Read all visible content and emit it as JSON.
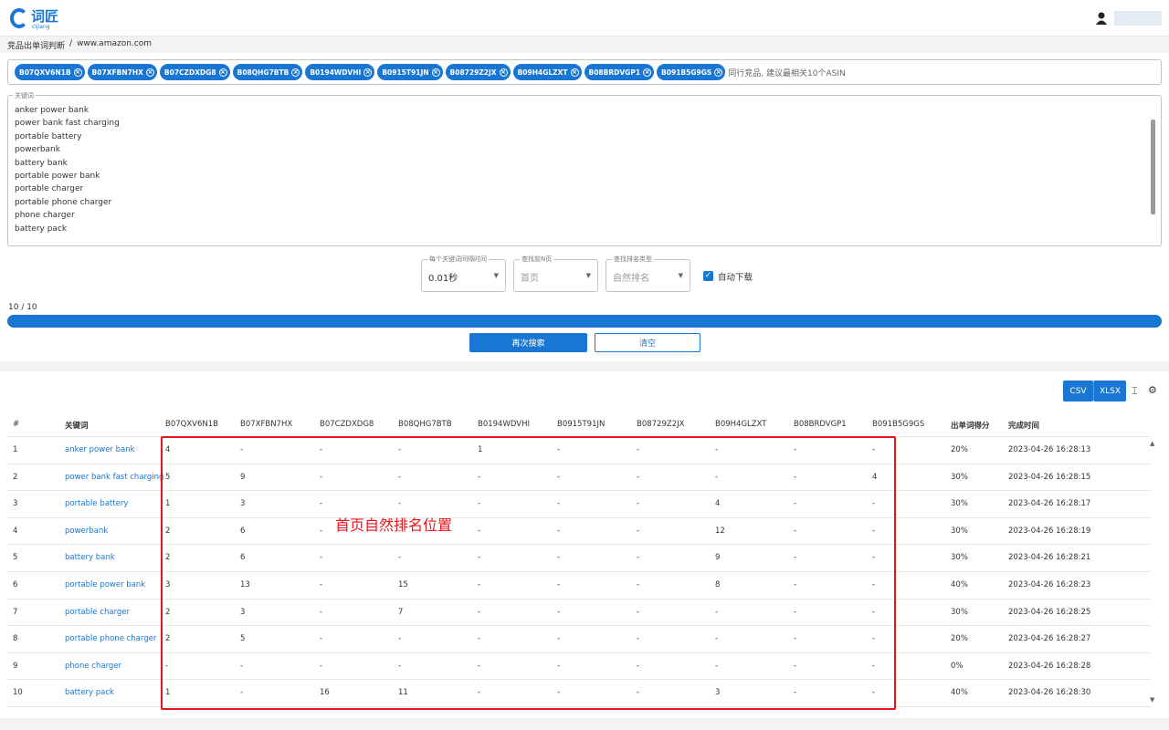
{
  "header": {
    "logo": "词匠",
    "logo_sub": "cijiang"
  },
  "breadcrumb": [
    "竞品出单词判断",
    "/",
    "www.amazon.com"
  ],
  "asin_tags": [
    "B07QXV6N1B",
    "B07XFBN7HX",
    "B07CZDXDG8",
    "B08QHG7BTB",
    "B0194WDVHI",
    "B0915T91JN",
    "B08729Z2JX",
    "B09H4GLZXT",
    "B08BRDVGP1",
    "B091B5G9GS"
  ],
  "asin_hint": "同行竞品, 建议最相关10个ASIN",
  "keywords_label": "关键词",
  "keywords": [
    "anker power bank",
    "power bank fast charging",
    "portable battery",
    "powerbank",
    "battery bank",
    "portable power bank",
    "portable charger",
    "portable phone charger",
    "phone charger",
    "battery pack"
  ],
  "options": [
    {
      "label": "每个关键词间隔时间",
      "value": "0.01秒"
    },
    {
      "label": "查找前N页",
      "value": "首页"
    },
    {
      "label": "查找排名类型",
      "value": "自然排名"
    }
  ],
  "auto_download": "自动下载",
  "progress_text": "10 / 10",
  "buttons": [
    "再次搜索",
    "清空"
  ],
  "export_buttons": [
    "CSV",
    "XLSX"
  ],
  "table": {
    "columns": [
      "#",
      "关键词",
      "B07QXV6N1B",
      "B07XFBN7HX",
      "B07CZDXDG8",
      "B08QHG7BTB",
      "B0194WDVHI",
      "B0915T91JN",
      "B08729Z2JX",
      "B09H4GLZXT",
      "B08BRDVGP1",
      "B091B5G9GS",
      "出单词得分",
      "完成时间"
    ],
    "rows": [
      [
        "1",
        "anker power bank",
        "4",
        "-",
        "-",
        "-",
        "1",
        "-",
        "-",
        "-",
        "-",
        "-",
        "20%",
        "2023-04-26 16:28:13"
      ],
      [
        "2",
        "power bank fast charging",
        "5",
        "9",
        "-",
        "-",
        "-",
        "-",
        "-",
        "-",
        "-",
        "4",
        "30%",
        "2023-04-26 16:28:15"
      ],
      [
        "3",
        "portable battery",
        "1",
        "3",
        "-",
        "-",
        "-",
        "-",
        "-",
        "4",
        "-",
        "-",
        "30%",
        "2023-04-26 16:28:17"
      ],
      [
        "4",
        "powerbank",
        "2",
        "6",
        "-",
        "-",
        "-",
        "-",
        "-",
        "12",
        "-",
        "-",
        "30%",
        "2023-04-26 16:28:19"
      ],
      [
        "5",
        "battery bank",
        "2",
        "6",
        "-",
        "-",
        "-",
        "-",
        "-",
        "9",
        "-",
        "-",
        "30%",
        "2023-04-26 16:28:21"
      ],
      [
        "6",
        "portable power bank",
        "3",
        "13",
        "-",
        "15",
        "-",
        "-",
        "-",
        "8",
        "-",
        "-",
        "40%",
        "2023-04-26 16:28:23"
      ],
      [
        "7",
        "portable charger",
        "2",
        "3",
        "-",
        "7",
        "-",
        "-",
        "-",
        "-",
        "-",
        "-",
        "30%",
        "2023-04-26 16:28:25"
      ],
      [
        "8",
        "portable phone charger",
        "2",
        "5",
        "-",
        "-",
        "-",
        "-",
        "-",
        "-",
        "-",
        "-",
        "20%",
        "2023-04-26 16:28:27"
      ],
      [
        "9",
        "phone charger",
        "-",
        "-",
        "-",
        "-",
        "-",
        "-",
        "-",
        "-",
        "-",
        "-",
        "0%",
        "2023-04-26 16:28:28"
      ],
      [
        "10",
        "battery pack",
        "1",
        "-",
        "16",
        "11",
        "-",
        "-",
        "-",
        "3",
        "-",
        "-",
        "40%",
        "2023-04-26 16:28:30"
      ]
    ]
  },
  "annotation": "首页自然排名位置"
}
